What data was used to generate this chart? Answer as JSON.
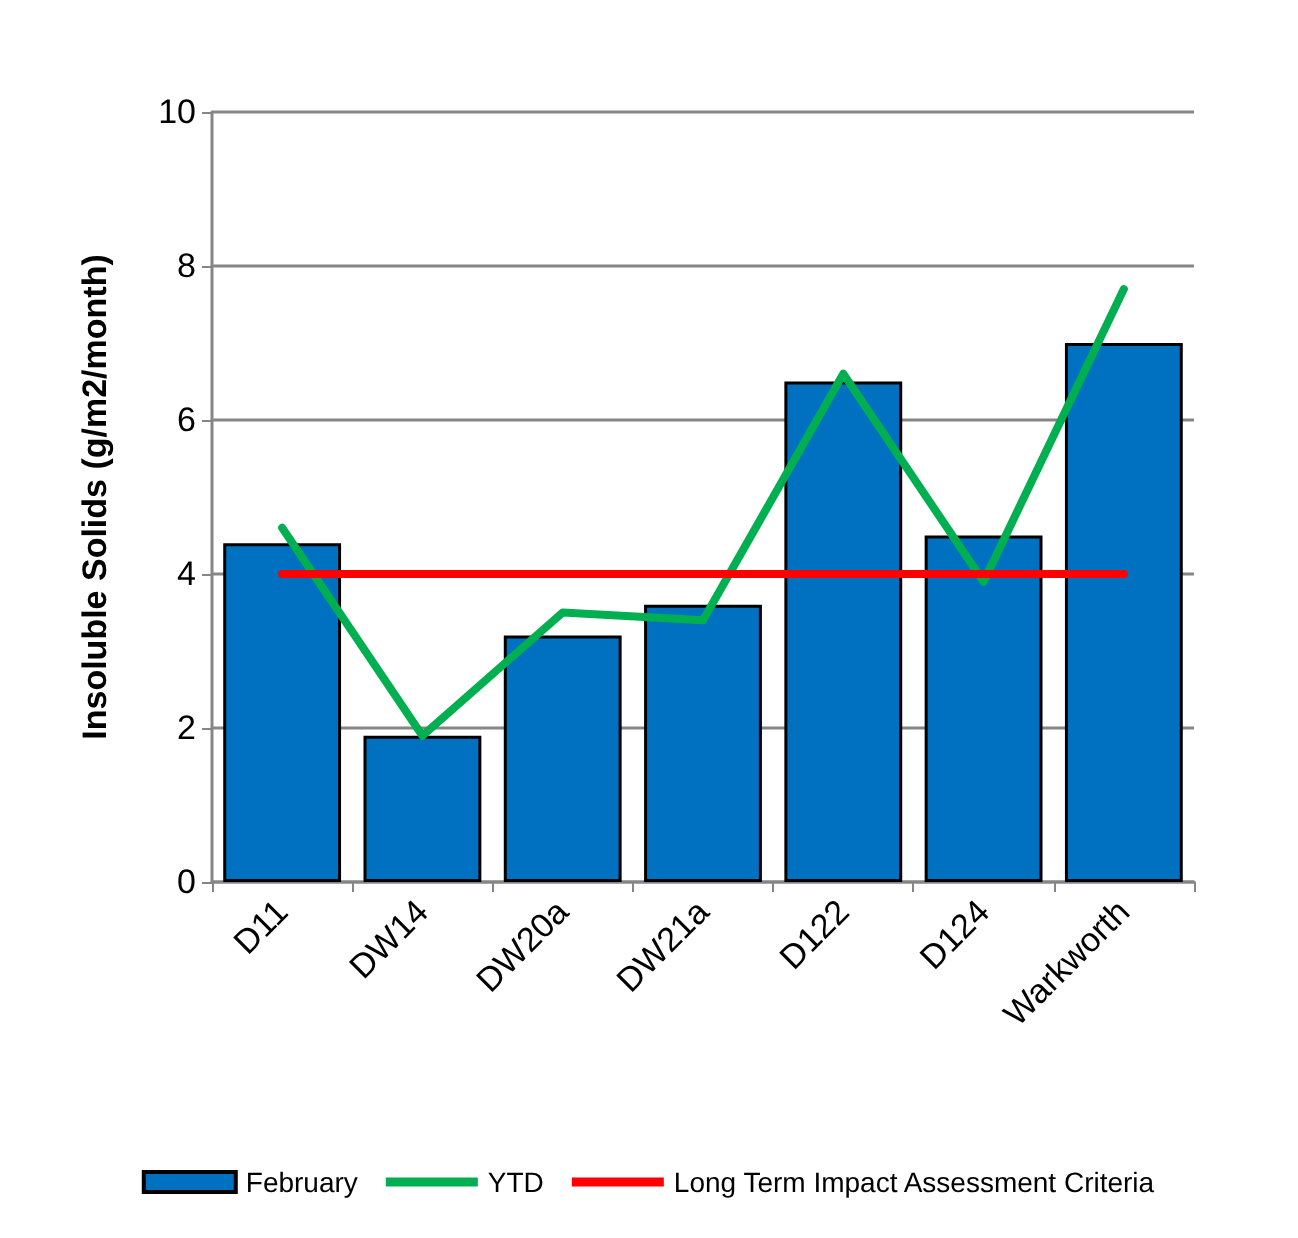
{
  "chart_data": {
    "type": "bar",
    "ylabel": "Insoluble Solids (g/m2/month)",
    "categories": [
      "D11",
      "DW14",
      "DW20a",
      "DW21a",
      "D122",
      "D124",
      "Warkworth"
    ],
    "series": [
      {
        "name": "February",
        "color": "#0070c0",
        "values": [
          4.4,
          1.9,
          3.2,
          3.6,
          6.5,
          4.5,
          7.0
        ]
      },
      {
        "name": "YTD",
        "type": "line",
        "color": "#00b050",
        "values": [
          4.6,
          1.9,
          3.5,
          3.4,
          6.6,
          3.9,
          7.7
        ]
      },
      {
        "name": "Long Term Impact Assessment Criteria",
        "type": "line",
        "color": "#ff0000",
        "values": [
          4,
          4,
          4,
          4,
          4,
          4,
          4
        ]
      }
    ],
    "ylim": [
      0,
      10
    ],
    "yticks": [
      0,
      2,
      4,
      6,
      8,
      10
    ],
    "grid": "y",
    "legend": "bottom",
    "marker": "none"
  }
}
